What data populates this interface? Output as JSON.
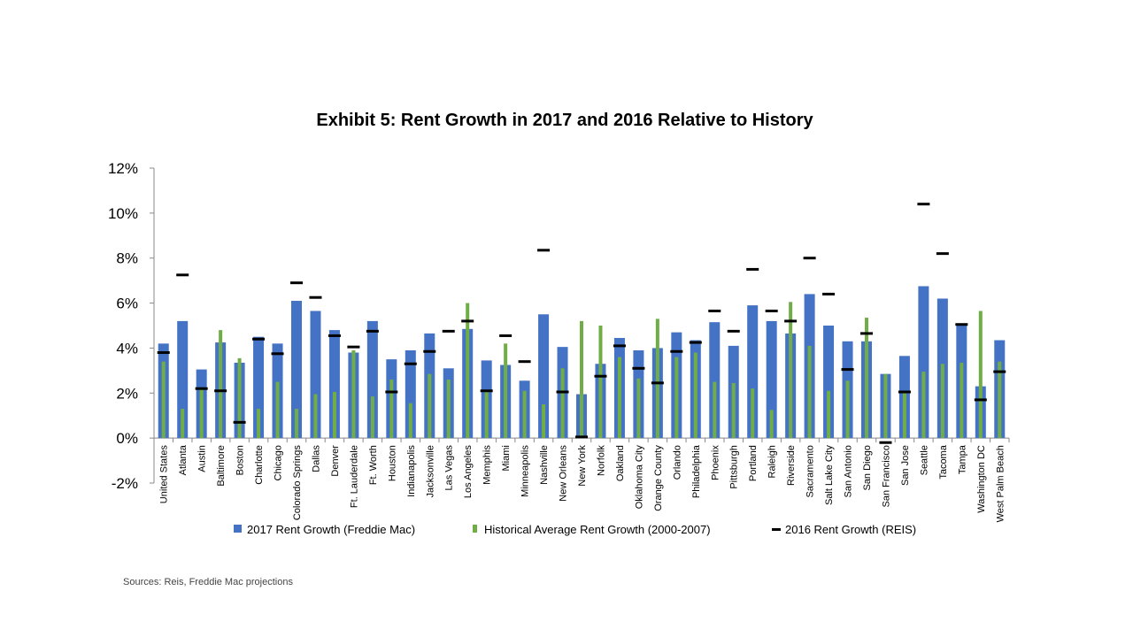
{
  "chart_data": {
    "type": "bar",
    "title": "Exhibit 5: Rent Growth in 2017 and 2016 Relative to History",
    "ylim": [
      -2,
      12
    ],
    "yticks": [
      -2,
      0,
      2,
      4,
      6,
      8,
      10,
      12
    ],
    "ytick_labels": [
      "-2%",
      "0%",
      "2%",
      "4%",
      "6%",
      "8%",
      "10%",
      "12%"
    ],
    "grid": false,
    "legend_position": "bottom",
    "categories": [
      "United States",
      "Atlanta",
      "Austin",
      "Baltimore",
      "Boston",
      "Charlotte",
      "Chicago",
      "Colorado Springs",
      "Dallas",
      "Denver",
      "Ft. Lauderdale",
      "Ft. Worth",
      "Houston",
      "Indianapolis",
      "Jacksonville",
      "Las Vegas",
      "Los Angeles",
      "Memphis",
      "Miami",
      "Minneapolis",
      "Nashville",
      "New Orleans",
      "New York",
      "Norfolk",
      "Oakland",
      "Oklahoma City",
      "Orange County",
      "Orlando",
      "Philadelphia",
      "Phoenix",
      "Pittsburgh",
      "Portland",
      "Raleigh",
      "Riverside",
      "Sacramento",
      "Salt Lake City",
      "San Antonio",
      "San Diego",
      "San Francisco",
      "San Jose",
      "Seattle",
      "Tacoma",
      "Tampa",
      "Washington DC",
      "West Palm Beach"
    ],
    "series": [
      {
        "name": "2017 Rent Growth (Freddie Mac)",
        "kind": "bar",
        "color": "#4472C4",
        "values": [
          4.2,
          5.2,
          3.05,
          4.25,
          3.35,
          4.5,
          4.2,
          6.1,
          5.65,
          4.8,
          3.8,
          5.2,
          3.5,
          3.9,
          4.65,
          3.1,
          4.85,
          3.45,
          3.25,
          2.55,
          5.5,
          4.05,
          1.95,
          3.3,
          4.45,
          3.9,
          4.0,
          4.7,
          4.35,
          5.15,
          4.1,
          5.9,
          5.2,
          4.65,
          6.4,
          5.0,
          4.3,
          4.3,
          2.85,
          3.65,
          6.75,
          6.2,
          5.0,
          2.3,
          4.35
        ]
      },
      {
        "name": "Historical Average Rent Growth (2000-2007)",
        "kind": "bar",
        "color": "#70AD47",
        "values": [
          3.4,
          1.3,
          2.15,
          4.8,
          3.55,
          1.3,
          2.5,
          1.3,
          1.95,
          2.05,
          3.9,
          1.85,
          2.6,
          1.55,
          2.85,
          2.6,
          6.0,
          2.05,
          4.2,
          2.1,
          1.5,
          3.1,
          5.2,
          5.0,
          3.6,
          2.65,
          5.3,
          3.6,
          3.8,
          2.5,
          2.45,
          2.2,
          1.25,
          6.05,
          4.1,
          2.1,
          2.55,
          5.35,
          2.85,
          2.1,
          2.95,
          3.3,
          3.35,
          5.65,
          3.4
        ]
      },
      {
        "name": "2016 Rent Growth (REIS)",
        "kind": "marker",
        "color": "#000000",
        "values": [
          3.8,
          7.25,
          2.2,
          2.1,
          0.7,
          4.4,
          3.75,
          6.9,
          6.25,
          4.55,
          4.05,
          4.75,
          2.05,
          3.3,
          3.85,
          4.75,
          5.2,
          2.1,
          4.55,
          3.4,
          8.35,
          2.05,
          0.05,
          2.75,
          4.1,
          3.1,
          2.45,
          3.85,
          4.25,
          5.65,
          4.75,
          7.5,
          5.65,
          5.2,
          8.0,
          6.4,
          3.05,
          4.65,
          -0.2,
          2.05,
          10.4,
          8.2,
          5.05,
          1.7,
          2.95
        ]
      }
    ]
  },
  "source_note": "Sources: Reis, Freddie Mac projections"
}
